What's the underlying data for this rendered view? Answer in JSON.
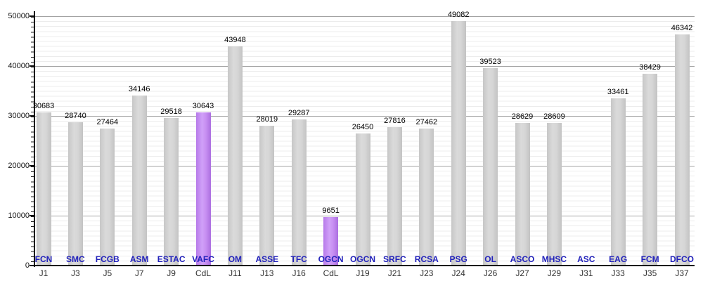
{
  "chart_data": {
    "type": "bar",
    "title": "",
    "xlabel": "",
    "ylabel": "",
    "ylim": [
      0,
      50000
    ],
    "y_ticks": [
      0,
      10000,
      20000,
      30000,
      40000,
      50000
    ],
    "minor_gridline_step": 1000,
    "grid": "horizontal, minor light every 1000, major gray every 10000",
    "legend": null,
    "bars": [
      {
        "team": "FCN",
        "round": "J1",
        "value": 30683,
        "highlight": false
      },
      {
        "team": "SMC",
        "round": "J3",
        "value": 28740,
        "highlight": false
      },
      {
        "team": "FCGB",
        "round": "J5",
        "value": 27464,
        "highlight": false
      },
      {
        "team": "ASM",
        "round": "J7",
        "value": 34146,
        "highlight": false
      },
      {
        "team": "ESTAC",
        "round": "J9",
        "value": 29518,
        "highlight": false
      },
      {
        "team": "VAFC",
        "round": "CdL",
        "value": 30643,
        "highlight": true
      },
      {
        "team": "OM",
        "round": "J11",
        "value": 43948,
        "highlight": false
      },
      {
        "team": "ASSE",
        "round": "J13",
        "value": 28019,
        "highlight": false
      },
      {
        "team": "TFC",
        "round": "J16",
        "value": 29287,
        "highlight": false
      },
      {
        "team": "OGCN",
        "round": "CdL",
        "value": 9651,
        "highlight": true
      },
      {
        "team": "OGCN",
        "round": "J19",
        "value": 26450,
        "highlight": false
      },
      {
        "team": "SRFC",
        "round": "J21",
        "value": 27816,
        "highlight": false
      },
      {
        "team": "RCSA",
        "round": "J23",
        "value": 27462,
        "highlight": false
      },
      {
        "team": "PSG",
        "round": "J24",
        "value": 49082,
        "highlight": false
      },
      {
        "team": "OL",
        "round": "J26",
        "value": 39523,
        "highlight": false
      },
      {
        "team": "ASCO",
        "round": "J27",
        "value": 28629,
        "highlight": false
      },
      {
        "team": "MHSC",
        "round": "J29",
        "value": 28609,
        "highlight": false
      },
      {
        "team": "ASC",
        "round": "J31",
        "value": null,
        "highlight": false
      },
      {
        "team": "EAG",
        "round": "J33",
        "value": 33461,
        "highlight": false
      },
      {
        "team": "FCM",
        "round": "J35",
        "value": 38429,
        "highlight": false
      },
      {
        "team": "DFCO",
        "round": "J37",
        "value": 46342,
        "highlight": false
      }
    ],
    "colors": {
      "bar_default": "#d4d4d4",
      "bar_highlight": "#c48ef2",
      "team_label": "#2222bb",
      "round_label": "#333333",
      "value_label": "#000000",
      "axis": "#000000",
      "gridline_major": "#a3a3a3",
      "gridline_minor": "#ececec"
    }
  }
}
